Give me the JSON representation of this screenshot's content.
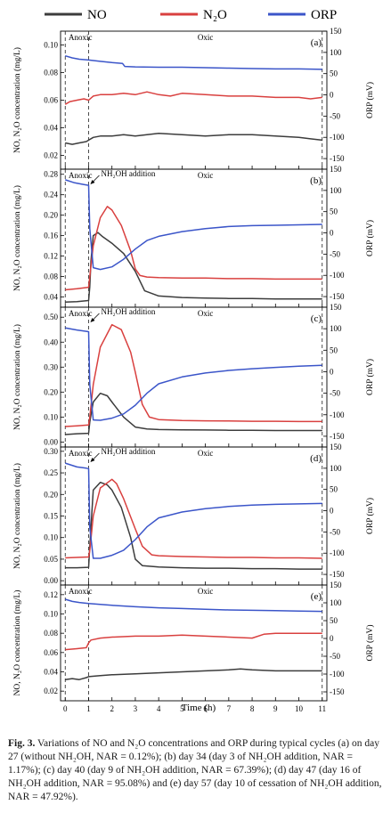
{
  "legend": [
    {
      "name": "NO",
      "color": "#3c3c3c"
    },
    {
      "name": "N₂O",
      "color": "#d9403f"
    },
    {
      "name": "ORP",
      "color": "#3b55c9"
    }
  ],
  "left_axis_label": "NO, N₂O concentration (mg/L)",
  "right_axis_label": "ORP (mV)",
  "x_axis_label": "Time (h)",
  "phase_labels": {
    "anoxic": "Anoxic",
    "oxic": "Oxic"
  },
  "caption": {
    "label": "Fig. 3.",
    "text": "Variations of NO and N₂O concentrations and ORP during typical cycles (a) on day 27 (without NH₂OH, NAR = 0.12%); (b) day 34 (day 3 of NH₂OH addition, NAR = 1.17%); (c) day 40 (day 9 of NH₂OH addition, NAR = 67.39%); (d) day 47 (day 16 of NH₂OH addition, NAR = 95.08%) and (e) day 57 (day 10 of cessation of NH₂OH addition, NAR = 47.92%)."
  },
  "chart_data": [
    {
      "type": "line",
      "panel": "(a)",
      "annotation": "",
      "ylim_left": [
        0.01,
        0.11
      ],
      "yticks_left": [
        0.02,
        0.04,
        0.06,
        0.08,
        0.1
      ],
      "ylim_right": [
        -175,
        150
      ],
      "yticks_right": [
        -150,
        -100,
        -50,
        0,
        50,
        100,
        150
      ],
      "xlim": [
        -0.2,
        11.2
      ],
      "xticks": [
        0,
        1,
        2,
        3,
        4,
        5,
        6,
        7,
        8,
        9,
        10,
        11
      ],
      "series": [
        {
          "name": "NO",
          "axis": "left",
          "x": [
            0,
            0.3,
            0.6,
            0.9,
            1,
            1.2,
            1.5,
            2,
            2.5,
            3,
            3.5,
            4,
            5,
            6,
            7,
            8,
            9,
            10,
            10.5,
            11
          ],
          "y": [
            0.029,
            0.028,
            0.029,
            0.03,
            0.031,
            0.033,
            0.034,
            0.034,
            0.035,
            0.034,
            0.035,
            0.036,
            0.035,
            0.034,
            0.035,
            0.035,
            0.034,
            0.033,
            0.032,
            0.031
          ]
        },
        {
          "name": "N₂O",
          "axis": "left",
          "x": [
            0,
            0.2,
            0.5,
            0.8,
            1,
            1.2,
            1.5,
            2,
            2.5,
            3,
            3.5,
            4,
            4.5,
            5,
            6,
            7,
            8,
            9,
            10,
            10.5,
            11
          ],
          "y": [
            0.057,
            0.059,
            0.06,
            0.061,
            0.06,
            0.063,
            0.064,
            0.064,
            0.065,
            0.064,
            0.066,
            0.064,
            0.063,
            0.065,
            0.064,
            0.063,
            0.063,
            0.062,
            0.062,
            0.061,
            0.062
          ]
        },
        {
          "name": "ORP",
          "axis": "right",
          "x": [
            0,
            0.3,
            0.6,
            1,
            1.5,
            2,
            2.45,
            2.55,
            3,
            4,
            5,
            6,
            7,
            8,
            9,
            10,
            11
          ],
          "y": [
            92,
            87,
            84,
            82,
            79,
            76,
            74,
            67,
            66,
            65,
            65,
            64,
            63,
            62,
            61,
            61,
            60
          ]
        }
      ]
    },
    {
      "type": "line",
      "panel": "(b)",
      "annotation": "NH₂OH addition",
      "ylim_left": [
        0.02,
        0.29
      ],
      "yticks_left": [
        0.04,
        0.08,
        0.12,
        0.16,
        0.2,
        0.24,
        0.28
      ],
      "ylim_right": [
        -175,
        150
      ],
      "yticks_right": [
        -150,
        -100,
        -50,
        0,
        50,
        100,
        150
      ],
      "xlim": [
        -0.2,
        11.2
      ],
      "xticks": [
        0,
        1,
        2,
        3,
        4,
        5,
        6,
        7,
        8,
        9,
        10,
        11
      ],
      "series": [
        {
          "name": "NO",
          "axis": "left",
          "x": [
            0,
            0.5,
            1,
            1.05,
            1.1,
            1.2,
            1.4,
            1.6,
            2,
            2.5,
            3,
            3.4,
            4,
            5,
            6,
            7,
            8,
            9,
            10,
            11
          ],
          "y": [
            0.03,
            0.031,
            0.033,
            0.06,
            0.11,
            0.16,
            0.166,
            0.158,
            0.145,
            0.125,
            0.09,
            0.052,
            0.042,
            0.039,
            0.038,
            0.037,
            0.037,
            0.036,
            0.036,
            0.036
          ]
        },
        {
          "name": "N₂O",
          "axis": "left",
          "x": [
            0,
            0.5,
            1,
            1.05,
            1.2,
            1.5,
            1.8,
            2,
            2.4,
            2.8,
            3,
            3.2,
            3.5,
            4,
            5,
            6,
            7,
            8,
            9,
            10,
            11
          ],
          "y": [
            0.054,
            0.056,
            0.059,
            0.08,
            0.14,
            0.195,
            0.217,
            0.21,
            0.18,
            0.13,
            0.095,
            0.082,
            0.079,
            0.078,
            0.077,
            0.077,
            0.076,
            0.076,
            0.075,
            0.075,
            0.075
          ]
        },
        {
          "name": "ORP",
          "axis": "right",
          "x": [
            0,
            0.4,
            0.8,
            1,
            1.05,
            1.2,
            1.5,
            2,
            2.5,
            3,
            3.5,
            4,
            5,
            6,
            7,
            8,
            9,
            10,
            11
          ],
          "y": [
            125,
            118,
            114,
            112,
            10,
            -82,
            -86,
            -80,
            -62,
            -38,
            -18,
            -8,
            3,
            10,
            15,
            17,
            18,
            19,
            20
          ]
        }
      ]
    },
    {
      "type": "line",
      "panel": "(c)",
      "annotation": "NH₂OH addition",
      "ylim_left": [
        -0.02,
        0.54
      ],
      "yticks_left": [
        0.0,
        0.1,
        0.2,
        0.3,
        0.4,
        0.5
      ],
      "ylim_right": [
        -175,
        150
      ],
      "yticks_right": [
        -150,
        -100,
        -50,
        0,
        50,
        100,
        150
      ],
      "xlim": [
        -0.2,
        11.2
      ],
      "xticks": [
        0,
        1,
        2,
        3,
        4,
        5,
        6,
        7,
        8,
        9,
        10,
        11
      ],
      "series": [
        {
          "name": "NO",
          "axis": "left",
          "x": [
            0,
            0.5,
            1,
            1.05,
            1.2,
            1.5,
            1.8,
            2,
            2.5,
            3,
            3.5,
            4,
            5,
            6,
            7,
            8,
            9,
            10,
            11
          ],
          "y": [
            0.03,
            0.033,
            0.035,
            0.08,
            0.16,
            0.195,
            0.185,
            0.16,
            0.1,
            0.06,
            0.052,
            0.05,
            0.049,
            0.048,
            0.047,
            0.047,
            0.046,
            0.046,
            0.046
          ]
        },
        {
          "name": "N₂O",
          "axis": "left",
          "x": [
            0,
            0.5,
            1,
            1.05,
            1.2,
            1.5,
            2,
            2.4,
            2.8,
            3,
            3.3,
            3.6,
            4,
            5,
            6,
            7,
            8,
            9,
            10,
            11
          ],
          "y": [
            0.062,
            0.065,
            0.068,
            0.1,
            0.23,
            0.38,
            0.47,
            0.45,
            0.36,
            0.28,
            0.15,
            0.1,
            0.09,
            0.086,
            0.085,
            0.084,
            0.083,
            0.083,
            0.082,
            0.082
          ]
        },
        {
          "name": "ORP",
          "axis": "right",
          "x": [
            0,
            0.5,
            0.9,
            1,
            1.05,
            1.2,
            1.5,
            2,
            2.5,
            3,
            3.5,
            4,
            5,
            6,
            7,
            8,
            9,
            10,
            11
          ],
          "y": [
            102,
            97,
            94,
            93,
            -30,
            -112,
            -113,
            -108,
            -98,
            -78,
            -50,
            -28,
            -12,
            -3,
            3,
            7,
            10,
            13,
            15
          ]
        }
      ]
    },
    {
      "type": "line",
      "panel": "(d)",
      "annotation": "NH₂OH addition",
      "ylim_left": [
        -0.01,
        0.31
      ],
      "yticks_left": [
        0.0,
        0.05,
        0.1,
        0.15,
        0.2,
        0.25,
        0.3
      ],
      "ylim_right": [
        -175,
        150
      ],
      "yticks_right": [
        -150,
        -100,
        -50,
        0,
        50,
        100,
        150
      ],
      "xlim": [
        -0.2,
        11.2
      ],
      "xticks": [
        0,
        1,
        2,
        3,
        4,
        5,
        6,
        7,
        8,
        9,
        10,
        11
      ],
      "series": [
        {
          "name": "NO",
          "axis": "left",
          "x": [
            0,
            0.5,
            1,
            1.05,
            1.2,
            1.5,
            1.8,
            2,
            2.4,
            2.8,
            3,
            3.3,
            4,
            5,
            6,
            7,
            8,
            9,
            10,
            11
          ],
          "y": [
            0.03,
            0.03,
            0.031,
            0.08,
            0.21,
            0.228,
            0.222,
            0.21,
            0.17,
            0.1,
            0.05,
            0.035,
            0.032,
            0.03,
            0.029,
            0.029,
            0.028,
            0.028,
            0.027,
            0.027
          ]
        },
        {
          "name": "N₂O",
          "axis": "left",
          "x": [
            0,
            0.5,
            1,
            1.05,
            1.2,
            1.5,
            2,
            2.2,
            2.5,
            3,
            3.3,
            3.7,
            4,
            5,
            6,
            7,
            8,
            9,
            10,
            11
          ],
          "y": [
            0.053,
            0.054,
            0.055,
            0.07,
            0.15,
            0.215,
            0.235,
            0.225,
            0.19,
            0.12,
            0.08,
            0.06,
            0.058,
            0.056,
            0.055,
            0.054,
            0.054,
            0.053,
            0.053,
            0.052
          ]
        },
        {
          "name": "ORP",
          "axis": "right",
          "x": [
            0,
            0.5,
            0.9,
            1,
            1.05,
            1.2,
            1.5,
            2,
            2.5,
            3,
            3.5,
            4,
            5,
            6,
            7,
            8,
            9,
            10,
            11
          ],
          "y": [
            112,
            103,
            100,
            99,
            -40,
            -112,
            -112,
            -105,
            -93,
            -68,
            -38,
            -17,
            -3,
            5,
            10,
            13,
            15,
            16,
            17
          ]
        }
      ]
    },
    {
      "type": "line",
      "panel": "(e)",
      "annotation": "",
      "ylim_left": [
        0.01,
        0.13
      ],
      "yticks_left": [
        0.02,
        0.04,
        0.06,
        0.08,
        0.1,
        0.12
      ],
      "ylim_right": [
        -175,
        150
      ],
      "yticks_right": [
        -150,
        -100,
        -50,
        0,
        50,
        100,
        150
      ],
      "xlim": [
        -0.2,
        11.2
      ],
      "xticks": [
        0,
        1,
        2,
        3,
        4,
        5,
        6,
        7,
        8,
        9,
        10,
        11
      ],
      "series": [
        {
          "name": "NO",
          "axis": "left",
          "x": [
            0,
            0.3,
            0.6,
            0.9,
            1,
            1.5,
            2,
            3,
            4,
            5,
            6,
            7,
            7.5,
            8,
            9,
            10,
            11
          ],
          "y": [
            0.032,
            0.033,
            0.032,
            0.034,
            0.035,
            0.036,
            0.037,
            0.038,
            0.039,
            0.04,
            0.041,
            0.042,
            0.043,
            0.042,
            0.041,
            0.041,
            0.041
          ]
        },
        {
          "name": "N₂O",
          "axis": "left",
          "x": [
            0,
            0.5,
            0.9,
            1,
            1.1,
            1.5,
            2,
            3,
            4,
            5,
            6,
            7,
            8,
            8.5,
            9,
            10,
            11
          ],
          "y": [
            0.063,
            0.064,
            0.065,
            0.07,
            0.073,
            0.075,
            0.076,
            0.077,
            0.077,
            0.078,
            0.077,
            0.076,
            0.075,
            0.079,
            0.08,
            0.08,
            0.08
          ]
        },
        {
          "name": "ORP",
          "axis": "right",
          "x": [
            0,
            0.3,
            0.6,
            1,
            2,
            3,
            4,
            5,
            6,
            7,
            8,
            9,
            10,
            11
          ],
          "y": [
            110,
            104,
            101,
            98,
            93,
            89,
            86,
            84,
            82,
            80,
            79,
            78,
            77,
            76
          ]
        }
      ]
    }
  ]
}
